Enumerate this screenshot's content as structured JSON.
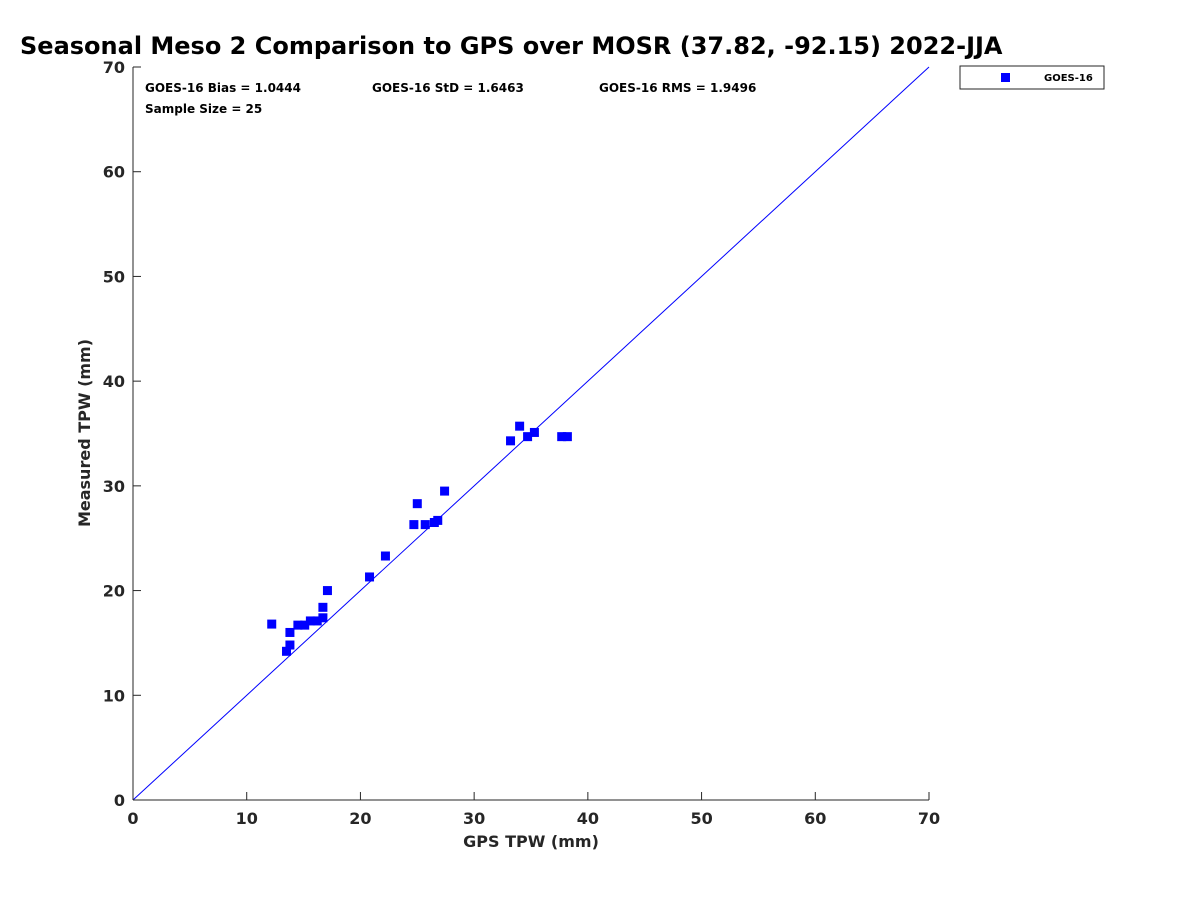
{
  "chart_data": {
    "type": "scatter",
    "title": "Seasonal Meso 2 Comparison to GPS over MOSR (37.82, -92.15) 2022-JJA",
    "xlabel": "GPS TPW (mm)",
    "ylabel": "Measured TPW (mm)",
    "xlim": [
      0,
      70
    ],
    "ylim": [
      0,
      70
    ],
    "xticks": [
      "0",
      "10",
      "20",
      "30",
      "40",
      "50",
      "60",
      "70"
    ],
    "yticks": [
      "0",
      "10",
      "20",
      "30",
      "40",
      "50",
      "60",
      "70"
    ],
    "grid": false,
    "legend_position": "outside-top-right",
    "reference_line": {
      "x": [
        0,
        70
      ],
      "y": [
        0,
        70
      ],
      "color": "#0000ff"
    },
    "stats": {
      "bias": "GOES-16 Bias = 1.0444",
      "std": "GOES-16 StD = 1.6463",
      "rms": "GOES-16 RMS = 1.9496",
      "sample_size": "Sample Size = 25"
    },
    "series": [
      {
        "name": "GOES-16",
        "color": "#0000ff",
        "marker": "square",
        "points": [
          [
            12.2,
            16.8
          ],
          [
            13.5,
            14.2
          ],
          [
            13.8,
            14.8
          ],
          [
            13.8,
            16.0
          ],
          [
            14.5,
            16.7
          ],
          [
            15.1,
            16.7
          ],
          [
            15.6,
            17.1
          ],
          [
            16.2,
            17.1
          ],
          [
            16.7,
            17.4
          ],
          [
            16.7,
            18.4
          ],
          [
            17.1,
            20.0
          ],
          [
            20.8,
            21.3
          ],
          [
            22.2,
            23.3
          ],
          [
            24.7,
            26.3
          ],
          [
            25.0,
            28.3
          ],
          [
            25.7,
            26.3
          ],
          [
            26.5,
            26.5
          ],
          [
            26.8,
            26.7
          ],
          [
            27.4,
            29.5
          ],
          [
            33.2,
            34.3
          ],
          [
            34.0,
            35.7
          ],
          [
            34.7,
            34.7
          ],
          [
            35.3,
            35.1
          ],
          [
            37.7,
            34.7
          ],
          [
            38.2,
            34.7
          ]
        ]
      }
    ]
  }
}
